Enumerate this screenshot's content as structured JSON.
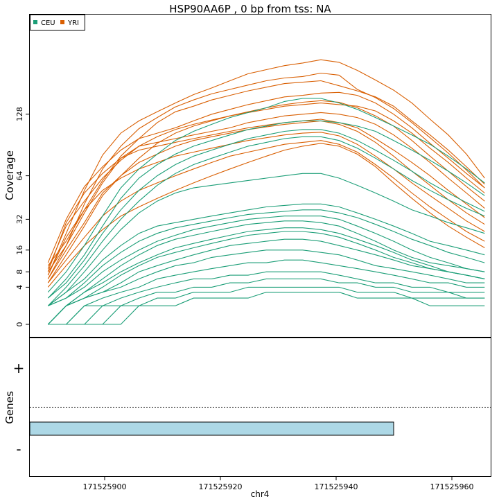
{
  "colors": {
    "CEU": "#1b9e77",
    "YRI": "#d95f02",
    "gene_fill": "#add8e6"
  },
  "chart_data": [
    {
      "type": "line",
      "title": "HSP90AA6P , 0 bp from tss: NA",
      "ylabel": "Coverage",
      "y_scale": "sqrt",
      "yticks": [
        0,
        4,
        8,
        16,
        32,
        64,
        128
      ],
      "xlim": [
        171525887,
        171525963
      ],
      "ylim": [
        0,
        255
      ],
      "legend": {
        "position": "top-left",
        "entries": [
          "CEU",
          "YRI"
        ]
      },
      "x": [
        171525890,
        171525893,
        171525896,
        171525899,
        171525902,
        171525905,
        171525908,
        171525911,
        171525914,
        171525917,
        171525920,
        171525923,
        171525926,
        171525929,
        171525932,
        171525935,
        171525938,
        171525941,
        171525944,
        171525947,
        171525950,
        171525953,
        171525956,
        171525959,
        171525962
      ],
      "series": [
        {
          "group": "YRI",
          "values": [
            7,
            24,
            52,
            83,
            106,
            120,
            131,
            142,
            153,
            162,
            172,
            182,
            188,
            194,
            198,
            203,
            199,
            187,
            173,
            159,
            142,
            122,
            104,
            84,
            62
          ]
        },
        {
          "group": "YRI",
          "values": [
            8,
            18,
            42,
            70,
            92,
            111,
            124,
            137,
            146,
            154,
            160,
            166,
            172,
            176,
            178,
            183,
            180,
            160,
            149,
            135,
            118,
            101,
            85,
            69,
            54
          ]
        },
        {
          "group": "YRI",
          "values": [
            10,
            20,
            38,
            60,
            82,
            100,
            118,
            131,
            138,
            146,
            152,
            158,
            163,
            168,
            170,
            172,
            165,
            158,
            150,
            138,
            120,
            104,
            88,
            72,
            57
          ]
        },
        {
          "group": "YRI",
          "values": [
            11,
            32,
            55,
            72,
            88,
            100,
            106,
            112,
            120,
            128,
            134,
            140,
            145,
            150,
            152,
            155,
            156,
            152,
            142,
            128,
            112,
            95,
            80,
            66,
            54
          ]
        },
        {
          "group": "YRI",
          "values": [
            9,
            28,
            44,
            62,
            78,
            92,
            102,
            110,
            116,
            121,
            126,
            130,
            134,
            138,
            140,
            142,
            140,
            138,
            132,
            120,
            106,
            90,
            76,
            62,
            50
          ]
        },
        {
          "group": "YRI",
          "values": [
            5,
            14,
            28,
            48,
            64,
            80,
            95,
            106,
            114,
            120,
            126,
            131,
            136,
            140,
            143,
            145,
            143,
            136,
            126,
            114,
            98,
            82,
            68,
            55,
            44
          ]
        },
        {
          "group": "YRI",
          "values": [
            6,
            18,
            36,
            58,
            80,
            92,
            96,
            100,
            104,
            108,
            112,
            118,
            122,
            126,
            128,
            130,
            128,
            124,
            116,
            104,
            90,
            76,
            62,
            50,
            39
          ]
        },
        {
          "group": "YRI",
          "values": [
            8,
            30,
            50,
            66,
            80,
            88,
            92,
            96,
            100,
            104,
            108,
            112,
            115,
            118,
            120,
            122,
            118,
            112,
            100,
            88,
            76,
            64,
            52,
            42,
            33
          ]
        },
        {
          "group": "YRI",
          "values": [
            6,
            16,
            30,
            50,
            64,
            76,
            84,
            92,
            98,
            102,
            106,
            110,
            113,
            116,
            118,
            120,
            116,
            108,
            96,
            82,
            68,
            56,
            45,
            36,
            29
          ]
        },
        {
          "group": "YRI",
          "values": [
            7,
            22,
            38,
            52,
            62,
            70,
            76,
            82,
            86,
            90,
            94,
            98,
            101,
            104,
            106,
            107,
            103,
            94,
            82,
            70,
            58,
            48,
            39,
            31,
            25
          ]
        },
        {
          "group": "YRI",
          "values": [
            5,
            12,
            22,
            34,
            44,
            52,
            58,
            64,
            70,
            76,
            82,
            86,
            90,
            94,
            96,
            98,
            94,
            86,
            74,
            62,
            50,
            40,
            32,
            25,
            20
          ]
        },
        {
          "group": "YRI",
          "values": [
            4,
            10,
            18,
            26,
            34,
            40,
            46,
            52,
            58,
            64,
            70,
            76,
            82,
            88,
            92,
            95,
            92,
            84,
            72,
            58,
            46,
            36,
            28,
            22,
            17
          ]
        },
        {
          "group": "CEU",
          "values": [
            3,
            8,
            18,
            34,
            54,
            70,
            84,
            98,
            108,
            116,
            124,
            130,
            136,
            144,
            148,
            148,
            142,
            134,
            124,
            114,
            104,
            94,
            82,
            70,
            58
          ]
        },
        {
          "group": "CEU",
          "values": [
            2,
            6,
            14,
            28,
            46,
            62,
            74,
            84,
            92,
            98,
            104,
            110,
            114,
            118,
            120,
            120,
            118,
            114,
            108,
            98,
            88,
            78,
            68,
            58,
            48
          ]
        },
        {
          "group": "CEU",
          "values": [
            2,
            5,
            12,
            24,
            38,
            52,
            64,
            74,
            82,
            88,
            94,
            100,
            104,
            108,
            110,
            110,
            106,
            98,
            88,
            78,
            68,
            58,
            50,
            43,
            37
          ]
        },
        {
          "group": "CEU",
          "values": [
            1,
            4,
            10,
            20,
            32,
            44,
            56,
            66,
            74,
            80,
            86,
            92,
            96,
            100,
            102,
            102,
            98,
            90,
            80,
            70,
            60,
            52,
            45,
            39,
            34
          ]
        },
        {
          "group": "CEU",
          "values": [
            1,
            3,
            8,
            16,
            26,
            36,
            44,
            50,
            54,
            56,
            58,
            60,
            62,
            64,
            66,
            66,
            62,
            56,
            50,
            44,
            38,
            34,
            30,
            27,
            24
          ]
        },
        {
          "group": "CEU",
          "values": [
            1,
            3,
            6,
            12,
            18,
            24,
            28,
            30,
            32,
            34,
            36,
            38,
            40,
            41,
            42,
            42,
            40,
            36,
            32,
            28,
            24,
            20,
            18,
            16,
            14
          ]
        },
        {
          "group": "CEU",
          "values": [
            1,
            2,
            5,
            10,
            15,
            20,
            24,
            27,
            29,
            31,
            33,
            35,
            36,
            37,
            38,
            38,
            36,
            33,
            29,
            25,
            21,
            18,
            15,
            13,
            11
          ]
        },
        {
          "group": "CEU",
          "values": [
            1,
            2,
            4,
            8,
            12,
            16,
            20,
            23,
            26,
            28,
            30,
            32,
            33,
            34,
            34,
            34,
            32,
            28,
            24,
            20,
            16,
            13,
            11,
            9,
            8
          ]
        },
        {
          "group": "CEU",
          "values": [
            0,
            1,
            3,
            6,
            10,
            14,
            18,
            21,
            23,
            25,
            27,
            29,
            30,
            31,
            31,
            30,
            28,
            24,
            20,
            16,
            13,
            11,
            10,
            9,
            8
          ]
        },
        {
          "group": "CEU",
          "values": [
            0,
            1,
            3,
            5,
            8,
            11,
            14,
            17,
            19,
            21,
            23,
            25,
            26,
            27,
            27,
            26,
            24,
            21,
            18,
            15,
            12,
            10,
            8,
            7,
            6
          ]
        },
        {
          "group": "CEU",
          "values": [
            0,
            1,
            2,
            4,
            7,
            10,
            13,
            15,
            17,
            19,
            21,
            23,
            24,
            25,
            25,
            24,
            22,
            19,
            16,
            13,
            11,
            9,
            8,
            7,
            6
          ]
        },
        {
          "group": "CEU",
          "values": [
            0,
            1,
            2,
            3,
            5,
            8,
            10,
            12,
            14,
            16,
            18,
            19,
            20,
            21,
            21,
            20,
            18,
            16,
            14,
            12,
            10,
            9,
            8,
            7,
            6
          ]
        },
        {
          "group": "CEU",
          "values": [
            0,
            1,
            2,
            3,
            4,
            6,
            8,
            10,
            11,
            13,
            14,
            15,
            16,
            16,
            16,
            15,
            14,
            12,
            10,
            9,
            8,
            7,
            6,
            5,
            5
          ]
        },
        {
          "group": "CEU",
          "values": [
            0,
            0,
            1,
            2,
            3,
            4,
            6,
            7,
            8,
            9,
            10,
            11,
            11,
            12,
            12,
            11,
            10,
            9,
            8,
            7,
            6,
            5,
            5,
            4,
            4
          ]
        },
        {
          "group": "CEU",
          "values": [
            0,
            0,
            1,
            1,
            2,
            3,
            4,
            5,
            6,
            6,
            7,
            7,
            8,
            8,
            8,
            8,
            7,
            6,
            5,
            5,
            4,
            4,
            3,
            3,
            3
          ]
        },
        {
          "group": "CEU",
          "values": [
            0,
            0,
            0,
            1,
            1,
            2,
            3,
            3,
            4,
            4,
            5,
            5,
            6,
            6,
            6,
            6,
            5,
            5,
            4,
            4,
            3,
            3,
            3,
            2,
            2
          ]
        },
        {
          "group": "CEU",
          "values": [
            0,
            0,
            0,
            0,
            1,
            1,
            2,
            2,
            3,
            3,
            3,
            4,
            4,
            4,
            4,
            4,
            4,
            3,
            3,
            3,
            2,
            2,
            2,
            2,
            2
          ]
        },
        {
          "group": "CEU",
          "values": [
            0,
            0,
            0,
            0,
            0,
            1,
            1,
            1,
            2,
            2,
            2,
            2,
            3,
            3,
            3,
            3,
            3,
            2,
            2,
            2,
            2,
            1,
            1,
            1,
            1
          ]
        }
      ]
    },
    {
      "type": "gene-track",
      "ylabel": "Genes",
      "strand_labels": {
        "plus": "+",
        "minus": "-"
      },
      "xlabel": "chr4",
      "x_ticks": [
        "171525900",
        "171525920",
        "171525940",
        "171525960"
      ],
      "genes": [
        {
          "start": 171525887,
          "end": 171525947,
          "strand": "-"
        }
      ]
    }
  ]
}
